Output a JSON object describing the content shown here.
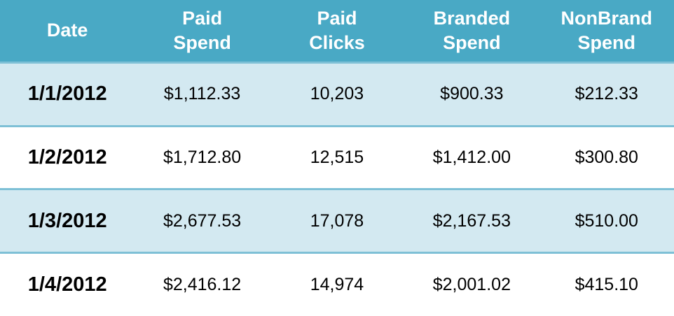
{
  "table": {
    "columns": [
      {
        "id": "date",
        "lines": [
          "Date"
        ]
      },
      {
        "id": "paid_spend",
        "lines": [
          "Paid",
          "Spend"
        ]
      },
      {
        "id": "paid_clicks",
        "lines": [
          "Paid",
          "Clicks"
        ]
      },
      {
        "id": "branded_spend",
        "lines": [
          "Branded",
          "Spend"
        ]
      },
      {
        "id": "nonbrand_spend",
        "lines": [
          "NonBrand",
          "Spend"
        ]
      }
    ],
    "rows": [
      {
        "date": "1/1/2012",
        "paid_spend": "$1,112.33",
        "paid_clicks": "10,203",
        "branded_spend": "$900.33",
        "nonbrand_spend": "$212.33"
      },
      {
        "date": "1/2/2012",
        "paid_spend": "$1,712.80",
        "paid_clicks": "12,515",
        "branded_spend": "$1,412.00",
        "nonbrand_spend": "$300.80"
      },
      {
        "date": "1/3/2012",
        "paid_spend": "$2,677.53",
        "paid_clicks": "17,078",
        "branded_spend": "$2,167.53",
        "nonbrand_spend": "$510.00"
      },
      {
        "date": "1/4/2012",
        "paid_spend": "$2,416.12",
        "paid_clicks": "14,974",
        "branded_spend": "$2,001.02",
        "nonbrand_spend": "$415.10"
      }
    ]
  },
  "colors": {
    "header_bg": "#49a9c5",
    "header_text": "#ffffff",
    "row_alt_bg": "#d3e9f1",
    "row_bg": "#ffffff",
    "separator": "#7ec0d6",
    "cell_text": "#000000"
  },
  "chart_data": {
    "type": "table",
    "columns": [
      "Date",
      "Paid Spend",
      "Paid Clicks",
      "Branded Spend",
      "NonBrand Spend"
    ],
    "rows": [
      [
        "1/1/2012",
        1112.33,
        10203,
        900.33,
        212.33
      ],
      [
        "1/2/2012",
        1712.8,
        12515,
        1412.0,
        300.8
      ],
      [
        "1/3/2012",
        2677.53,
        17078,
        2167.53,
        510.0
      ],
      [
        "1/4/2012",
        2416.12,
        14974,
        2001.02,
        415.1
      ]
    ],
    "title": "",
    "notes": "Alternating-row data table; header row teal with white bold text; date column bold"
  }
}
